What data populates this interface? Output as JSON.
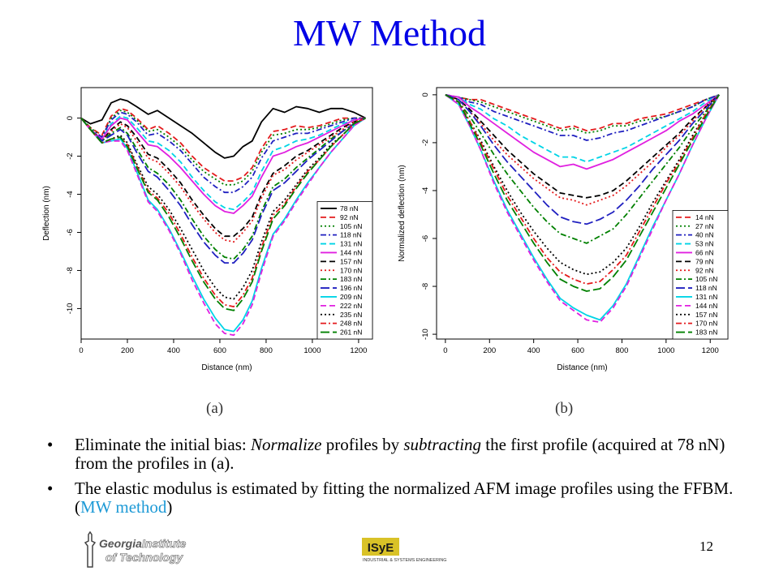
{
  "slide": {
    "title": "MW Method",
    "captions": [
      "(a)",
      "(b)"
    ],
    "bullets": [
      {
        "prefix": "Eliminate the initial bias: ",
        "em1": "Normalize",
        "mid": " profiles by ",
        "em2": "subtracting",
        "suffix": " the first profile (acquired at 78 nN) from the profiles in (a)."
      },
      {
        "prefix": "The elastic modulus is estimated by fitting the normalized AFM image profiles using the FFBM. (",
        "accent": "MW method",
        "suffix": ")"
      }
    ],
    "page_number": "12",
    "logos": {
      "left_line1": "Georgia",
      "left_line1b": "Institute",
      "left_line2": "of Tech",
      "left_line2b": "nology",
      "right_mark": "ISyE",
      "right_text": "INDUSTRIAL & SYSTEMS ENGINEERING"
    },
    "accent_color": "#1e9ad6",
    "title_color": "#0000e6"
  },
  "chart_data": [
    {
      "type": "line",
      "xlabel": "Distance (nm)",
      "ylabel": "Deflection (nm)",
      "xlim": [
        0,
        1260
      ],
      "ylim": [
        -11.6,
        1.6
      ],
      "xticks": [
        0,
        200,
        400,
        600,
        800,
        1000,
        1200
      ],
      "yticks": [
        0,
        -2,
        -4,
        -6,
        -8,
        -10
      ],
      "legend_position": "bottom-right",
      "x": [
        0,
        40,
        90,
        130,
        170,
        200,
        240,
        290,
        330,
        380,
        430,
        480,
        530,
        580,
        620,
        660,
        700,
        740,
        780,
        830,
        880,
        930,
        980,
        1030,
        1080,
        1130,
        1180,
        1230
      ],
      "series": [
        {
          "name": "78 nN",
          "color": "#000000",
          "style": "solid",
          "values": [
            0.0,
            -0.3,
            -0.1,
            0.8,
            1.0,
            0.9,
            0.6,
            0.2,
            0.4,
            0.0,
            -0.4,
            -0.8,
            -1.3,
            -1.8,
            -2.1,
            -2.0,
            -1.5,
            -1.2,
            -0.2,
            0.5,
            0.3,
            0.6,
            0.5,
            0.3,
            0.5,
            0.5,
            0.3,
            0.0
          ]
        },
        {
          "name": "92 nN",
          "color": "#e41a1c",
          "style": "dash",
          "values": [
            0.0,
            -0.5,
            -0.9,
            0.1,
            0.5,
            0.4,
            0.0,
            -0.6,
            -0.4,
            -0.8,
            -1.3,
            -2.0,
            -2.6,
            -3.0,
            -3.3,
            -3.3,
            -3.1,
            -2.6,
            -1.6,
            -0.7,
            -0.6,
            -0.4,
            -0.5,
            -0.4,
            -0.2,
            0.0,
            0.0,
            0.0
          ]
        },
        {
          "name": "105 nN",
          "color": "#008000",
          "style": "dot",
          "values": [
            0.0,
            -0.5,
            -1.0,
            0.0,
            0.4,
            0.3,
            -0.1,
            -0.7,
            -0.6,
            -1.0,
            -1.5,
            -2.2,
            -2.8,
            -3.2,
            -3.5,
            -3.5,
            -3.3,
            -2.8,
            -1.8,
            -0.9,
            -0.8,
            -0.6,
            -0.6,
            -0.5,
            -0.3,
            -0.1,
            0.0,
            0.0
          ]
        },
        {
          "name": "118 nN",
          "color": "#2020c0",
          "style": "dashdot",
          "values": [
            0.0,
            -0.6,
            -1.0,
            -0.1,
            0.3,
            0.2,
            -0.2,
            -0.9,
            -0.8,
            -1.2,
            -1.7,
            -2.4,
            -3.1,
            -3.6,
            -3.9,
            -3.9,
            -3.6,
            -3.1,
            -2.1,
            -1.2,
            -1.0,
            -0.8,
            -0.8,
            -0.6,
            -0.4,
            -0.2,
            0.0,
            0.0
          ]
        },
        {
          "name": "131 nN",
          "color": "#00d4e6",
          "style": "dash",
          "values": [
            0.0,
            -0.6,
            -1.1,
            -0.3,
            0.1,
            0.0,
            -0.5,
            -1.2,
            -1.3,
            -1.7,
            -2.3,
            -3.1,
            -3.8,
            -4.4,
            -4.7,
            -4.8,
            -4.4,
            -3.9,
            -2.8,
            -1.7,
            -1.5,
            -1.2,
            -1.1,
            -0.9,
            -0.6,
            -0.3,
            -0.1,
            0.0
          ]
        },
        {
          "name": "144 nN",
          "color": "#e020e0",
          "style": "solid",
          "values": [
            0.0,
            -0.6,
            -1.1,
            -0.4,
            0.0,
            -0.1,
            -0.7,
            -1.4,
            -1.5,
            -2.0,
            -2.6,
            -3.3,
            -4.0,
            -4.6,
            -4.9,
            -5.0,
            -4.6,
            -4.1,
            -3.1,
            -2.0,
            -1.8,
            -1.5,
            -1.3,
            -1.0,
            -0.7,
            -0.4,
            -0.1,
            0.0
          ]
        },
        {
          "name": "157 nN",
          "color": "#000000",
          "style": "dash",
          "values": [
            0.0,
            -0.6,
            -1.2,
            -0.6,
            -0.2,
            -0.4,
            -1.0,
            -1.9,
            -2.1,
            -2.7,
            -3.4,
            -4.3,
            -5.1,
            -5.8,
            -6.2,
            -6.2,
            -5.8,
            -5.2,
            -4.0,
            -2.9,
            -2.5,
            -2.0,
            -1.7,
            -1.3,
            -0.9,
            -0.5,
            -0.2,
            0.0
          ]
        },
        {
          "name": "170 nN",
          "color": "#e41a1c",
          "style": "dot",
          "values": [
            0.0,
            -0.6,
            -1.2,
            -0.7,
            -0.3,
            -0.5,
            -1.2,
            -2.1,
            -2.3,
            -2.9,
            -3.6,
            -4.5,
            -5.3,
            -6.0,
            -6.4,
            -6.5,
            -6.0,
            -5.4,
            -4.2,
            -3.0,
            -2.7,
            -2.2,
            -1.8,
            -1.4,
            -1.0,
            -0.6,
            -0.2,
            0.0
          ]
        },
        {
          "name": "183 nN",
          "color": "#008000",
          "style": "dashdot",
          "values": [
            0.0,
            -0.6,
            -1.2,
            -0.8,
            -0.5,
            -0.8,
            -1.6,
            -2.6,
            -2.9,
            -3.5,
            -4.3,
            -5.3,
            -6.2,
            -6.9,
            -7.3,
            -7.4,
            -6.9,
            -6.2,
            -4.9,
            -3.6,
            -3.2,
            -2.6,
            -2.1,
            -1.6,
            -1.1,
            -0.7,
            -0.3,
            0.0
          ]
        },
        {
          "name": "196 nN",
          "color": "#2020c0",
          "style": "longdash",
          "values": [
            0.0,
            -0.6,
            -1.2,
            -0.9,
            -0.6,
            -0.9,
            -1.8,
            -2.8,
            -3.1,
            -3.8,
            -4.6,
            -5.6,
            -6.5,
            -7.2,
            -7.6,
            -7.6,
            -7.1,
            -6.4,
            -5.1,
            -3.8,
            -3.4,
            -2.8,
            -2.2,
            -1.7,
            -1.2,
            -0.7,
            -0.3,
            0.0
          ]
        },
        {
          "name": "209 nN",
          "color": "#00d4e6",
          "style": "solid",
          "values": [
            0.0,
            -0.6,
            -1.3,
            -1.2,
            -1.1,
            -1.6,
            -2.8,
            -4.3,
            -4.8,
            -5.8,
            -7.0,
            -8.3,
            -9.5,
            -10.5,
            -11.1,
            -11.2,
            -10.6,
            -9.6,
            -7.9,
            -6.1,
            -5.3,
            -4.3,
            -3.4,
            -2.6,
            -1.8,
            -1.1,
            -0.4,
            0.0
          ]
        },
        {
          "name": "222 nN",
          "color": "#e020e0",
          "style": "dash",
          "values": [
            0.0,
            -0.6,
            -1.3,
            -1.2,
            -1.2,
            -1.7,
            -2.9,
            -4.4,
            -4.9,
            -5.9,
            -7.1,
            -8.5,
            -9.7,
            -10.8,
            -11.3,
            -11.4,
            -10.8,
            -9.8,
            -8.1,
            -6.2,
            -5.4,
            -4.4,
            -3.5,
            -2.6,
            -1.8,
            -1.1,
            -0.4,
            0.0
          ]
        },
        {
          "name": "235 nN",
          "color": "#000000",
          "style": "dot",
          "values": [
            0.0,
            -0.6,
            -1.3,
            -1.1,
            -0.9,
            -1.3,
            -2.4,
            -3.6,
            -4.0,
            -4.8,
            -5.8,
            -6.9,
            -8.0,
            -8.9,
            -9.4,
            -9.5,
            -8.9,
            -8.0,
            -6.5,
            -4.9,
            -4.3,
            -3.5,
            -2.7,
            -2.1,
            -1.4,
            -0.9,
            -0.3,
            0.0
          ]
        },
        {
          "name": "248 nN",
          "color": "#e41a1c",
          "style": "dashdot",
          "values": [
            0.0,
            -0.6,
            -1.3,
            -1.1,
            -1.0,
            -1.4,
            -2.5,
            -3.8,
            -4.2,
            -5.0,
            -6.1,
            -7.3,
            -8.4,
            -9.3,
            -9.8,
            -9.9,
            -9.3,
            -8.4,
            -6.8,
            -5.1,
            -4.5,
            -3.6,
            -2.8,
            -2.2,
            -1.5,
            -0.9,
            -0.3,
            0.0
          ]
        },
        {
          "name": "261 nN",
          "color": "#008000",
          "style": "longdash",
          "values": [
            0.0,
            -0.6,
            -1.3,
            -1.1,
            -1.0,
            -1.5,
            -2.6,
            -3.9,
            -4.3,
            -5.2,
            -6.3,
            -7.5,
            -8.6,
            -9.5,
            -10.0,
            -10.1,
            -9.5,
            -8.6,
            -7.0,
            -5.3,
            -4.6,
            -3.7,
            -2.9,
            -2.2,
            -1.5,
            -0.9,
            -0.3,
            0.0
          ]
        }
      ]
    },
    {
      "type": "line",
      "xlabel": "Distance (nm)",
      "ylabel": "Normalized deflection (nm)",
      "xlim": [
        -40,
        1280
      ],
      "ylim": [
        -10.2,
        0.3
      ],
      "xticks": [
        0,
        200,
        400,
        600,
        800,
        1000,
        1200
      ],
      "yticks": [
        0,
        -2,
        -4,
        -6,
        -8,
        -10
      ],
      "legend_position": "bottom-right",
      "x": [
        0,
        60,
        110,
        160,
        220,
        280,
        340,
        400,
        460,
        520,
        580,
        640,
        700,
        760,
        820,
        880,
        940,
        1000,
        1060,
        1120,
        1180,
        1240
      ],
      "series": [
        {
          "name": "14 nN",
          "color": "#e41a1c",
          "style": "dash",
          "values": [
            0.0,
            -0.1,
            -0.2,
            -0.2,
            -0.4,
            -0.6,
            -0.8,
            -1.0,
            -1.2,
            -1.4,
            -1.3,
            -1.5,
            -1.4,
            -1.2,
            -1.2,
            -1.0,
            -0.9,
            -0.8,
            -0.6,
            -0.4,
            -0.2,
            0.0
          ]
        },
        {
          "name": "27 nN",
          "color": "#008000",
          "style": "dot",
          "values": [
            0.0,
            -0.1,
            -0.2,
            -0.3,
            -0.5,
            -0.7,
            -0.9,
            -1.1,
            -1.3,
            -1.5,
            -1.4,
            -1.6,
            -1.5,
            -1.3,
            -1.3,
            -1.1,
            -1.0,
            -0.9,
            -0.7,
            -0.5,
            -0.2,
            0.0
          ]
        },
        {
          "name": "40 nN",
          "color": "#2020c0",
          "style": "dashdot",
          "values": [
            0.0,
            -0.1,
            -0.3,
            -0.4,
            -0.7,
            -0.9,
            -1.1,
            -1.3,
            -1.5,
            -1.7,
            -1.7,
            -1.9,
            -1.8,
            -1.6,
            -1.5,
            -1.3,
            -1.1,
            -0.9,
            -0.7,
            -0.5,
            -0.2,
            0.0
          ]
        },
        {
          "name": "53 nN",
          "color": "#00d4e6",
          "style": "dash",
          "values": [
            0.0,
            -0.1,
            -0.4,
            -0.6,
            -1.0,
            -1.3,
            -1.7,
            -2.0,
            -2.3,
            -2.6,
            -2.6,
            -2.8,
            -2.6,
            -2.4,
            -2.2,
            -1.9,
            -1.6,
            -1.3,
            -1.0,
            -0.7,
            -0.3,
            0.0
          ]
        },
        {
          "name": "66 nN",
          "color": "#e020e0",
          "style": "solid",
          "values": [
            0.0,
            -0.1,
            -0.5,
            -0.8,
            -1.2,
            -1.6,
            -2.0,
            -2.4,
            -2.7,
            -3.0,
            -2.9,
            -3.1,
            -2.9,
            -2.7,
            -2.4,
            -2.1,
            -1.8,
            -1.5,
            -1.1,
            -0.8,
            -0.4,
            0.0
          ]
        },
        {
          "name": "79 nN",
          "color": "#000000",
          "style": "dash",
          "values": [
            0.0,
            -0.2,
            -0.6,
            -1.1,
            -1.7,
            -2.3,
            -2.8,
            -3.3,
            -3.7,
            -4.1,
            -4.2,
            -4.3,
            -4.2,
            -4.0,
            -3.6,
            -3.1,
            -2.6,
            -2.1,
            -1.6,
            -1.0,
            -0.5,
            0.0
          ]
        },
        {
          "name": "92 nN",
          "color": "#e41a1c",
          "style": "dot",
          "values": [
            0.0,
            -0.2,
            -0.7,
            -1.2,
            -1.9,
            -2.5,
            -3.0,
            -3.5,
            -3.9,
            -4.3,
            -4.4,
            -4.6,
            -4.4,
            -4.2,
            -3.8,
            -3.3,
            -2.8,
            -2.2,
            -1.7,
            -1.1,
            -0.5,
            0.0
          ]
        },
        {
          "name": "105 nN",
          "color": "#008000",
          "style": "dashdot",
          "values": [
            0.0,
            -0.3,
            -0.9,
            -1.6,
            -2.5,
            -3.3,
            -4.0,
            -4.7,
            -5.3,
            -5.8,
            -6.0,
            -6.2,
            -5.9,
            -5.6,
            -5.0,
            -4.3,
            -3.6,
            -2.9,
            -2.2,
            -1.4,
            -0.7,
            0.0
          ]
        },
        {
          "name": "118 nN",
          "color": "#2020c0",
          "style": "longdash",
          "values": [
            0.0,
            -0.2,
            -0.7,
            -1.3,
            -2.1,
            -2.8,
            -3.4,
            -4.0,
            -4.6,
            -5.1,
            -5.3,
            -5.4,
            -5.2,
            -4.9,
            -4.4,
            -3.8,
            -3.1,
            -2.5,
            -1.9,
            -1.2,
            -0.6,
            0.0
          ]
        },
        {
          "name": "131 nN",
          "color": "#00d4e6",
          "style": "solid",
          "values": [
            0.0,
            -0.4,
            -1.3,
            -2.3,
            -3.6,
            -4.8,
            -5.8,
            -6.8,
            -7.7,
            -8.5,
            -8.9,
            -9.2,
            -9.4,
            -8.8,
            -7.9,
            -6.7,
            -5.5,
            -4.4,
            -3.3,
            -2.1,
            -1.0,
            0.0
          ]
        },
        {
          "name": "144 nN",
          "color": "#e020e0",
          "style": "dash",
          "values": [
            0.0,
            -0.4,
            -1.3,
            -2.3,
            -3.7,
            -4.9,
            -5.9,
            -6.9,
            -7.8,
            -8.6,
            -9.0,
            -9.4,
            -9.5,
            -8.9,
            -8.0,
            -6.8,
            -5.6,
            -4.4,
            -3.3,
            -2.1,
            -1.0,
            0.0
          ]
        },
        {
          "name": "157 nN",
          "color": "#000000",
          "style": "dot",
          "values": [
            0.0,
            -0.3,
            -1.1,
            -1.9,
            -3.0,
            -4.0,
            -4.9,
            -5.7,
            -6.4,
            -7.0,
            -7.3,
            -7.5,
            -7.4,
            -7.0,
            -6.4,
            -5.5,
            -4.5,
            -3.6,
            -2.7,
            -1.7,
            -0.8,
            0.0
          ]
        },
        {
          "name": "170 nN",
          "color": "#e41a1c",
          "style": "dashdot",
          "values": [
            0.0,
            -0.3,
            -1.1,
            -2.0,
            -3.1,
            -4.2,
            -5.1,
            -6.0,
            -6.8,
            -7.4,
            -7.7,
            -7.9,
            -7.8,
            -7.3,
            -6.7,
            -5.7,
            -4.7,
            -3.7,
            -2.8,
            -1.8,
            -0.8,
            0.0
          ]
        },
        {
          "name": "183 nN",
          "color": "#008000",
          "style": "longdash",
          "values": [
            0.0,
            -0.3,
            -1.2,
            -2.1,
            -3.3,
            -4.4,
            -5.3,
            -6.2,
            -7.0,
            -7.7,
            -8.0,
            -8.2,
            -8.1,
            -7.6,
            -6.9,
            -5.9,
            -4.9,
            -3.9,
            -2.9,
            -1.9,
            -0.9,
            0.0
          ]
        }
      ]
    }
  ]
}
